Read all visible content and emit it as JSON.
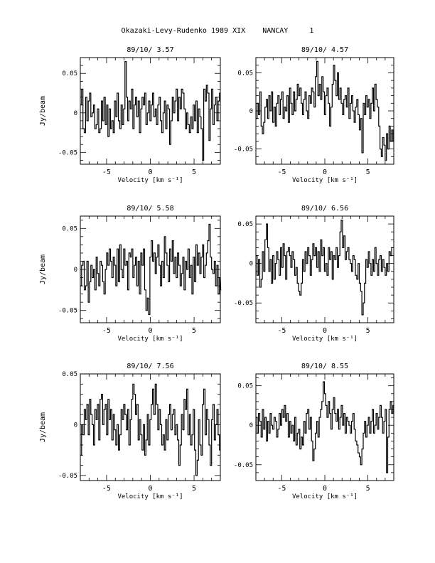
{
  "page": {
    "title": "Okazaki-Levy-Rudenko 1989 XIX    NANCAY     1"
  },
  "chart_data": [
    {
      "type": "line",
      "title": "89/10/ 3.57",
      "xlabel": "Velocity [km s⁻¹]",
      "ylabel": "Jy/beam",
      "xlim": [
        -8,
        8
      ],
      "ylim": [
        -0.065,
        0.07
      ],
      "xticks": [
        -5,
        0,
        5
      ],
      "yticks": [
        -0.05,
        0,
        0.05
      ],
      "ytick_labels": [
        "-0.05",
        "0",
        "0.05"
      ],
      "x_start": -8,
      "x_step": 0.15,
      "values": [
        0.01,
        0.03,
        -0.02,
        -0.025,
        0.02,
        -0.01,
        0.015,
        0.025,
        -0.005,
        0.0,
        0.01,
        -0.02,
        -0.015,
        0.005,
        -0.025,
        -0.02,
        0.015,
        -0.01,
        0.02,
        -0.015,
        0.01,
        -0.03,
        0.005,
        -0.02,
        -0.01,
        -0.025,
        0.015,
        -0.005,
        0.025,
        -0.01,
        -0.02,
        0.01,
        -0.015,
        0.005,
        0.065,
        0.02,
        -0.01,
        0.015,
        0.005,
        0.03,
        -0.02,
        0.01,
        0.02,
        -0.005,
        0.015,
        -0.025,
        0.005,
        0.02,
        0.01,
        0.025,
        -0.015,
        0.0,
        0.015,
        -0.01,
        0.01,
        0.025,
        -0.005,
        0.005,
        -0.015,
        0.01,
        0.02,
        -0.01,
        -0.025,
        0.0,
        0.015,
        -0.02,
        0.01,
        0.005,
        -0.04,
        -0.01,
        0.02,
        0.0,
        0.015,
        0.03,
        -0.01,
        0.02,
        0.005,
        0.03,
        0.025,
        0.005,
        -0.02,
        0.0,
        -0.015,
        -0.025,
        -0.005,
        -0.02,
        0.01,
        -0.01,
        0.015,
        -0.025,
        0.005,
        -0.005,
        -0.02,
        -0.06,
        0.03,
        0.015,
        0.035,
        0.025,
        -0.035,
        0.005,
        0.03,
        -0.015,
        0.01,
        0.02,
        -0.01,
        0.015,
        0.025
      ]
    },
    {
      "type": "line",
      "title": "89/10/ 4.57",
      "xlabel": "Velocity [km s⁻¹]",
      "ylabel": "",
      "xlim": [
        -8,
        8
      ],
      "ylim": [
        -0.07,
        0.07
      ],
      "xticks": [
        -5,
        0,
        5
      ],
      "yticks": [
        -0.05,
        0,
        0.05
      ],
      "ytick_labels": [
        "-0.05",
        "0",
        "0.05"
      ],
      "x_start": -8,
      "x_step": 0.15,
      "values": [
        -0.01,
        0.01,
        -0.005,
        0.025,
        -0.02,
        -0.03,
        -0.015,
        0.005,
        0.015,
        -0.01,
        0.02,
        0.0,
        0.025,
        -0.015,
        0.005,
        -0.02,
        0.01,
        0.02,
        -0.005,
        0.015,
        0.025,
        -0.01,
        0.005,
        0.0,
        0.02,
        -0.015,
        0.03,
        0.01,
        -0.005,
        0.025,
        0.0,
        0.015,
        0.035,
        0.02,
        0.03,
        0.01,
        -0.005,
        0.015,
        0.025,
        0.0,
        -0.01,
        0.02,
        0.01,
        0.03,
        0.025,
        0.005,
        0.045,
        0.065,
        0.02,
        0.035,
        0.015,
        0.045,
        0.025,
        -0.005,
        0.02,
        0.03,
        0.01,
        -0.02,
        0.005,
        0.035,
        0.06,
        0.04,
        0.02,
        0.05,
        0.015,
        0.03,
        0.01,
        -0.005,
        0.015,
        0.02,
        0.005,
        0.03,
        -0.01,
        0.01,
        0.02,
        0.0,
        -0.015,
        0.005,
        0.015,
        -0.005,
        -0.025,
        -0.01,
        -0.055,
        0.01,
        -0.005,
        0.02,
        0.005,
        0.015,
        -0.01,
        0.01,
        0.03,
        0.0,
        0.035,
        0.015,
        0.005,
        -0.02,
        -0.05,
        -0.06,
        -0.035,
        -0.045,
        -0.065,
        -0.03,
        -0.05,
        -0.02,
        -0.04,
        -0.025,
        -0.04
      ]
    },
    {
      "type": "line",
      "title": "89/10/ 5.58",
      "xlabel": "Velocity [km s⁻¹]",
      "ylabel": "Jy/beam",
      "xlim": [
        -8,
        8
      ],
      "ylim": [
        -0.065,
        0.065
      ],
      "xticks": [
        -5,
        0,
        5
      ],
      "yticks": [
        -0.05,
        0,
        0.05
      ],
      "ytick_labels": [
        "-0.05",
        "0",
        "0.05"
      ],
      "x_start": -8,
      "x_step": 0.15,
      "values": [
        -0.02,
        0.005,
        0.01,
        -0.025,
        -0.02,
        0.01,
        -0.04,
        -0.015,
        0.005,
        -0.01,
        0.0,
        -0.025,
        0.015,
        -0.005,
        -0.02,
        0.01,
        0.005,
        -0.015,
        -0.03,
        0.0,
        0.02,
        0.005,
        0.025,
        0.01,
        -0.01,
        0.015,
        0.005,
        -0.02,
        0.025,
        -0.015,
        0.03,
        0.0,
        -0.01,
        0.025,
        0.005,
        0.01,
        -0.025,
        0.02,
        0.015,
        0.025,
        -0.01,
        0.005,
        0.015,
        -0.02,
        0.01,
        -0.03,
        0.02,
        0.005,
        0.025,
        -0.025,
        -0.05,
        -0.035,
        -0.055,
        0.015,
        0.035,
        0.01,
        0.02,
        -0.005,
        0.015,
        0.03,
        0.005,
        -0.02,
        0.01,
        -0.01,
        0.04,
        0.02,
        0.005,
        -0.015,
        0.025,
        0.01,
        0.035,
        -0.005,
        0.015,
        -0.01,
        0.02,
        0.005,
        -0.02,
        -0.005,
        0.015,
        -0.025,
        0.01,
        0.0,
        0.025,
        -0.01,
        0.005,
        -0.03,
        0.015,
        -0.015,
        0.03,
        0.005,
        0.02,
        -0.005,
        0.015,
        0.03,
        -0.01,
        0.005,
        0.02,
        0.035,
        0.055,
        0.015,
        0.0,
        -0.005,
        0.01,
        -0.02,
        0.005,
        -0.03,
        -0.01,
        -0.025
      ]
    },
    {
      "type": "line",
      "title": "89/10/ 6.56",
      "xlabel": "Velocity [km s⁻¹]",
      "ylabel": "",
      "xlim": [
        -8,
        8
      ],
      "ylim": [
        -0.075,
        0.06
      ],
      "xticks": [
        -5,
        0,
        5
      ],
      "yticks": [
        -0.05,
        0,
        0.05
      ],
      "ytick_labels": [
        "-0.05",
        "0",
        "0.05"
      ],
      "x_start": -8,
      "x_step": 0.15,
      "values": [
        0.01,
        -0.015,
        0.005,
        -0.03,
        -0.02,
        0.015,
        -0.01,
        0.03,
        0.05,
        0.02,
        -0.01,
        0.005,
        -0.025,
        0.01,
        -0.02,
        0.0,
        0.015,
        0.005,
        -0.015,
        0.02,
        -0.005,
        0.025,
        0.01,
        -0.02,
        0.015,
        0.02,
        0.01,
        -0.005,
        0.015,
        0.005,
        -0.015,
        -0.005,
        -0.025,
        -0.035,
        -0.04,
        -0.025,
        0.005,
        -0.01,
        0.015,
        0.0,
        0.02,
        0.01,
        -0.015,
        0.005,
        0.025,
        0.01,
        0.02,
        -0.005,
        0.015,
        -0.01,
        0.03,
        0.01,
        0.02,
        -0.01,
        0.0,
        -0.015,
        0.02,
        0.005,
        0.015,
        -0.02,
        0.01,
        0.005,
        0.02,
        -0.005,
        0.01,
        0.04,
        0.055,
        0.02,
        0.035,
        0.005,
        0.015,
        0.02,
        0.005,
        0.0,
        -0.01,
        0.01,
        0.005,
        -0.015,
        -0.02,
        0.0,
        -0.025,
        -0.035,
        -0.065,
        -0.05,
        -0.025,
        0.005,
        -0.005,
        0.015,
        0.0,
        -0.015,
        0.005,
        -0.01,
        0.02,
        0.0,
        -0.015,
        0.005,
        0.01,
        -0.01,
        0.005,
        -0.005,
        -0.015,
        0.0,
        -0.01,
        0.015,
        0.01,
        0.02
      ]
    },
    {
      "type": "line",
      "title": "89/10/ 7.56",
      "xlabel": "Velocity [km s⁻¹]",
      "ylabel": "Jy/beam",
      "xlim": [
        -8,
        8
      ],
      "ylim": [
        -0.055,
        0.05
      ],
      "xticks": [
        -5,
        0,
        5
      ],
      "yticks": [
        -0.05,
        0,
        0.05
      ],
      "ytick_labels": [
        "-0.05",
        "0",
        "0.05"
      ],
      "x_start": -8,
      "x_step": 0.15,
      "values": [
        -0.03,
        0.0,
        -0.01,
        0.015,
        0.005,
        0.02,
        -0.01,
        0.025,
        0.01,
        0.0,
        -0.02,
        0.015,
        0.005,
        0.02,
        -0.015,
        0.025,
        0.03,
        0.0,
        0.015,
        0.02,
        -0.01,
        0.025,
        0.005,
        0.015,
        -0.015,
        0.01,
        -0.005,
        -0.02,
        0.0,
        -0.025,
        -0.01,
        0.015,
        0.005,
        0.02,
        0.01,
        -0.005,
        0.015,
        -0.02,
        0.005,
        0.025,
        0.04,
        0.03,
        0.01,
        0.02,
        -0.015,
        0.005,
        -0.01,
        -0.025,
        0.0,
        -0.03,
        -0.015,
        0.01,
        -0.02,
        0.005,
        0.02,
        0.035,
        0.01,
        0.04,
        0.02,
        -0.005,
        0.015,
        0.0,
        -0.02,
        -0.01,
        -0.025,
        0.005,
        -0.015,
        0.01,
        0.02,
        -0.005,
        0.01,
        0.015,
        -0.01,
        0.0,
        -0.015,
        -0.04,
        -0.02,
        0.01,
        -0.005,
        0.025,
        0.015,
        0.035,
        -0.01,
        0.01,
        -0.02,
        -0.01,
        0.015,
        -0.025,
        -0.05,
        -0.035,
        0.005,
        -0.02,
        -0.03,
        0.02,
        0.035,
        -0.01,
        0.015,
        0.005,
        -0.02,
        -0.04,
        0.005,
        0.02,
        -0.015,
        0.0,
        0.015,
        -0.01,
        -0.025
      ]
    },
    {
      "type": "line",
      "title": "89/10/ 8.55",
      "xlabel": "Velocity [km s⁻¹]",
      "ylabel": "",
      "xlim": [
        -8,
        8
      ],
      "ylim": [
        -0.07,
        0.065
      ],
      "xticks": [
        -5,
        0,
        5
      ],
      "yticks": [
        -0.05,
        0,
        0.05
      ],
      "ytick_labels": [
        "-0.05",
        "0",
        "0.05"
      ],
      "x_start": -8,
      "x_step": 0.15,
      "values": [
        0.01,
        -0.01,
        0.015,
        0.005,
        -0.015,
        0.02,
        -0.005,
        0.01,
        -0.02,
        0.005,
        -0.01,
        0.015,
        0.0,
        -0.005,
        0.01,
        0.005,
        -0.015,
        -0.005,
        0.015,
        0.0,
        0.02,
        0.01,
        0.025,
        0.005,
        0.015,
        -0.015,
        0.005,
        -0.01,
        0.0,
        -0.02,
        0.01,
        -0.025,
        -0.01,
        -0.005,
        -0.03,
        -0.015,
        -0.025,
        0.005,
        -0.01,
        0.015,
        0.02,
        -0.005,
        0.01,
        -0.02,
        -0.045,
        -0.03,
        -0.01,
        0.005,
        -0.015,
        0.01,
        0.02,
        0.03,
        0.055,
        0.04,
        0.025,
        0.01,
        0.03,
        0.015,
        -0.005,
        0.02,
        0.035,
        0.015,
        0.005,
        0.02,
        -0.005,
        0.01,
        0.025,
        0.0,
        0.015,
        -0.01,
        0.01,
        0.005,
        0.0,
        -0.01,
        0.005,
        0.015,
        -0.005,
        -0.02,
        -0.025,
        -0.035,
        -0.04,
        -0.05,
        -0.03,
        -0.01,
        0.005,
        -0.015,
        0.0,
        0.01,
        -0.01,
        0.005,
        0.02,
        -0.01,
        0.0,
        0.015,
        -0.005,
        0.01,
        0.025,
        0.01,
        -0.01,
        0.005,
        0.02,
        -0.06,
        -0.015,
        0.02,
        0.03,
        0.015,
        0.025
      ]
    }
  ]
}
